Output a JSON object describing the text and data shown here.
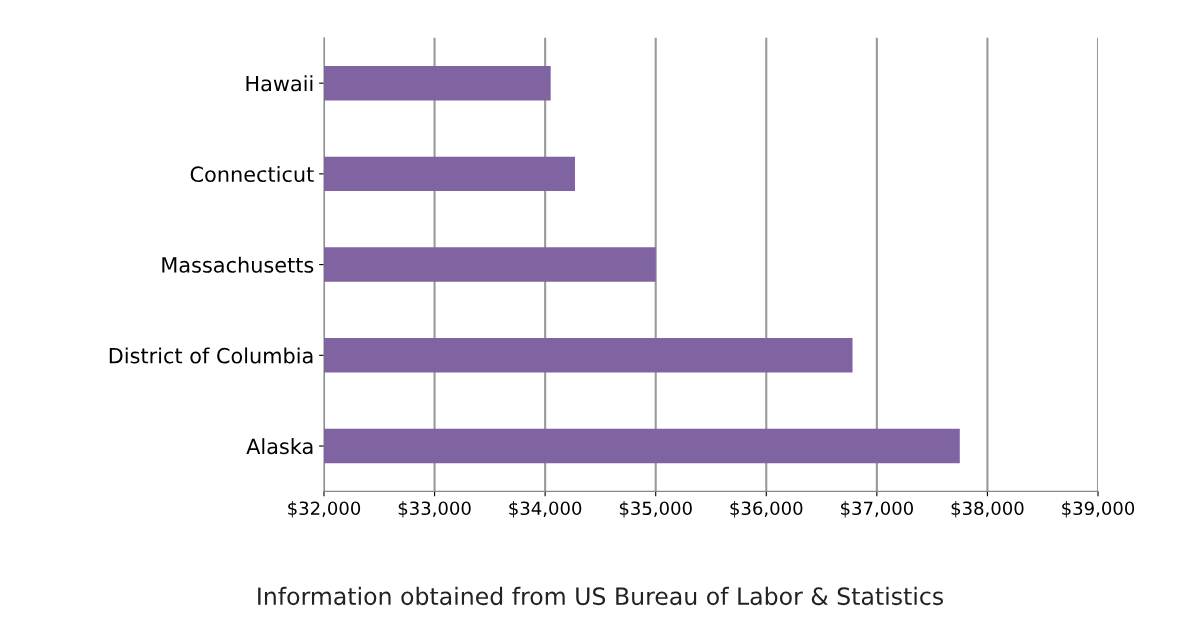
{
  "chart_data": {
    "type": "bar",
    "orientation": "horizontal",
    "categories": [
      "Hawaii",
      "Connecticut",
      "Massachusetts",
      "District of Columbia",
      "Alaska"
    ],
    "values": [
      34050,
      34270,
      35000,
      36780,
      37750
    ],
    "color": "#8064a2",
    "xlim": [
      32000,
      39000
    ],
    "xticks": [
      {
        "value": 32000,
        "label": "$32,000"
      },
      {
        "value": 33000,
        "label": "$33,000"
      },
      {
        "value": 34000,
        "label": "$34,000"
      },
      {
        "value": 35000,
        "label": "$35,000"
      },
      {
        "value": 36000,
        "label": "$36,000"
      },
      {
        "value": 37000,
        "label": "$37,000"
      },
      {
        "value": 38000,
        "label": "$38,000"
      },
      {
        "value": 39000,
        "label": "$39,000"
      }
    ],
    "grid": "x",
    "annotations": [
      "Information obtained from US Bureau of Labor & Statistics"
    ]
  }
}
